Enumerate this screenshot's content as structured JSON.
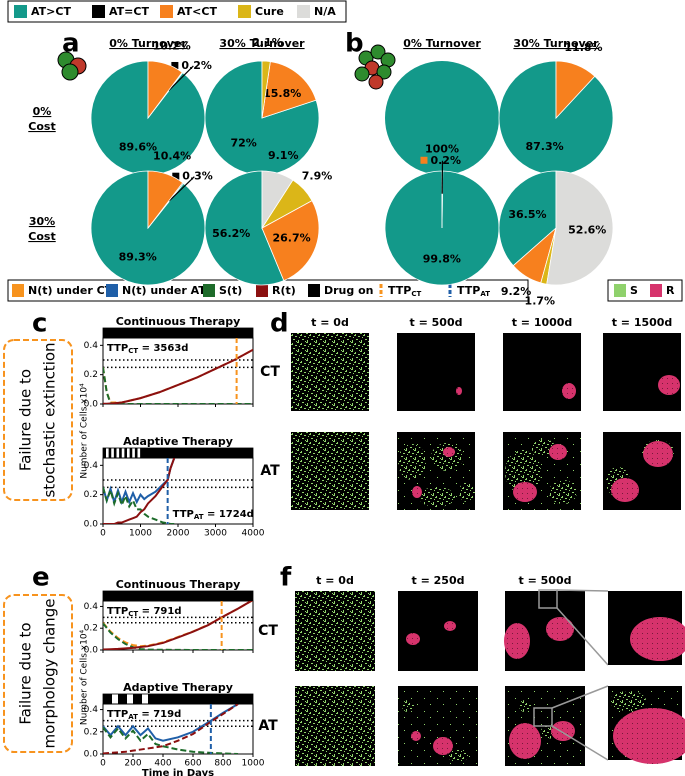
{
  "outcome_legend": [
    {
      "name": "AT>CT",
      "color": "#13998a"
    },
    {
      "name": "AT=CT",
      "color": "#000000"
    },
    {
      "name": "AT<CT",
      "color": "#f7801e"
    },
    {
      "name": "Cure",
      "color": "#dbb618"
    },
    {
      "name": "N/A",
      "color": "#dcdcda"
    }
  ],
  "panel_labels": [
    "a",
    "b",
    "c",
    "d",
    "e",
    "f"
  ],
  "turnover_headers": [
    "0% Turnover",
    "30% Turnover"
  ],
  "cost_labels": [
    [
      "0%",
      "Cost"
    ],
    [
      "30%",
      "Cost"
    ]
  ],
  "line_legend": [
    {
      "name": "N(t) under CT",
      "color": "#f7931e"
    },
    {
      "name": "N(t) under AT",
      "color": "#1f5fa8"
    },
    {
      "name": "S(t)",
      "color": "#1d6b2a"
    },
    {
      "name": "R(t)",
      "color": "#8b1010"
    },
    {
      "name": "Drug on",
      "color": "#000000"
    },
    {
      "name": "TTP",
      "sub": "CT",
      "color": "#f7931e"
    },
    {
      "name": "TTP",
      "sub": "AT",
      "color": "#1f5fa8"
    }
  ],
  "cell_legend": [
    {
      "name": "S",
      "color": "#8fd16c"
    },
    {
      "name": "R",
      "color": "#d6336c"
    }
  ],
  "side_labels": [
    [
      "Failure due to",
      "stochastic extinction"
    ],
    [
      "Failure due to",
      "morphology change"
    ]
  ],
  "simulations": {
    "d": {
      "times": [
        "t = 0d",
        "t = 500d",
        "t = 1000d",
        "t = 1500d"
      ],
      "rows": [
        "CT",
        "AT"
      ]
    },
    "f": {
      "times": [
        "t = 0d",
        "t = 250d",
        "t = 500d"
      ],
      "rows": [
        "CT",
        "AT"
      ]
    }
  },
  "chart_data": [
    {
      "type": "pie",
      "values": [
        89.6,
        0.2,
        10.2
      ],
      "value_labels": [
        "89.6%",
        "0.2%",
        "10.2%"
      ],
      "colors": [
        "#13998a",
        "#000000",
        "#f7801e"
      ]
    },
    {
      "type": "pie",
      "values": [
        72,
        15.8,
        2.1
      ],
      "value_labels": [
        "72%",
        "15.8%",
        "2.1%"
      ],
      "colors": [
        "#13998a",
        "#f7801e",
        "#dbb618"
      ]
    },
    {
      "type": "pie",
      "values": [
        89.3,
        0.3,
        10.4
      ],
      "value_labels": [
        "89.3%",
        "0.3%",
        "10.4%"
      ],
      "colors": [
        "#13998a",
        "#000000",
        "#f7801e"
      ]
    },
    {
      "type": "pie",
      "values": [
        56.2,
        26.7,
        7.9,
        9.1
      ],
      "value_labels": [
        "56.2%",
        "26.7%",
        "7.9%",
        "9.1%"
      ],
      "colors": [
        "#13998a",
        "#f7801e",
        "#dbb618",
        "#dcdcda"
      ]
    },
    {
      "type": "pie",
      "values": [
        100
      ],
      "value_labels": [
        "100%"
      ],
      "colors": [
        "#13998a"
      ]
    },
    {
      "type": "pie",
      "values": [
        87.3,
        11.8
      ],
      "value_labels": [
        "87.3%",
        "11.8%"
      ],
      "colors": [
        "#13998a",
        "#f7801e"
      ]
    },
    {
      "type": "pie",
      "values": [
        99.8,
        0.2
      ],
      "value_labels": [
        "99.8%",
        "0.2%"
      ],
      "colors": [
        "#13998a",
        "#f7801e"
      ]
    },
    {
      "type": "pie",
      "values": [
        36.5,
        9.2,
        1.7,
        52.6
      ],
      "value_labels": [
        "36.5%",
        "9.2%",
        "1.7%",
        "52.6%"
      ],
      "colors": [
        "#13998a",
        "#f7801e",
        "#dbb618",
        "#dcdcda"
      ]
    },
    {
      "type": "line",
      "title": "Continuous Therapy",
      "x": [
        0,
        100,
        200,
        500,
        1000,
        1500,
        2000,
        2500,
        3000,
        3500,
        4000
      ],
      "series": [
        {
          "color": "#f7931e",
          "dash": true,
          "values": [
            0.25,
            0.08,
            0.01,
            0.01,
            0.04,
            0.08,
            0.13,
            0.18,
            0.24,
            0.3,
            0.37
          ]
        },
        {
          "color": "#1d6b2a",
          "dash": true,
          "values": [
            0.25,
            0.08,
            0.005,
            0,
            0,
            0,
            0,
            0,
            0,
            0,
            0
          ]
        },
        {
          "color": "#8b1010",
          "dash": false,
          "values": [
            0.002,
            0.002,
            0.003,
            0.01,
            0.04,
            0.08,
            0.13,
            0.18,
            0.24,
            0.3,
            0.37
          ]
        }
      ],
      "xlim": [
        0,
        4000
      ],
      "xticks": [
        0,
        1000,
        2000,
        3000,
        4000
      ],
      "show_xtick_labels": false,
      "ylim": [
        0,
        0.45
      ],
      "yticks": [
        {
          "value": 0,
          "label": "0.0"
        },
        0.2,
        0.4
      ],
      "thresholds": [
        0.25,
        0.3
      ],
      "drug_on": [
        [
          0,
          4000
        ]
      ],
      "ttp": 3563,
      "ttp_label": [
        "TTP",
        "CT",
        " = 3563d"
      ],
      "ttp_color": "#f7931e"
    },
    {
      "type": "line",
      "title": "Adaptive Therapy",
      "x": [
        0,
        100,
        200,
        300,
        400,
        500,
        600,
        700,
        800,
        900,
        1000,
        1100,
        1200,
        1400,
        1600,
        1724,
        1800,
        1900
      ],
      "series": [
        {
          "color": "#1f5fa8",
          "dash": false,
          "values": [
            0.25,
            0.16,
            0.24,
            0.15,
            0.23,
            0.15,
            0.22,
            0.15,
            0.21,
            0.15,
            0.2,
            0.17,
            0.19,
            0.22,
            0.27,
            0.3,
            0.38,
            0.45
          ]
        },
        {
          "color": "#1d6b2a",
          "dash": true,
          "values": [
            0.25,
            0.16,
            0.23,
            0.14,
            0.21,
            0.13,
            0.19,
            0.12,
            0.16,
            0.1,
            0.1,
            0.07,
            0.05,
            0.03,
            0.01,
            0.005,
            0,
            0
          ]
        },
        {
          "color": "#8b1010",
          "dash": false,
          "values": [
            0,
            0,
            0,
            0,
            0.01,
            0.01,
            0.02,
            0.03,
            0.04,
            0.05,
            0.08,
            0.1,
            0.14,
            0.19,
            0.26,
            0.3,
            0.38,
            0.45
          ]
        }
      ],
      "xlim": [
        0,
        4000
      ],
      "xticks": [
        0,
        1000,
        2000,
        3000,
        4000
      ],
      "show_xtick_labels": true,
      "ylim": [
        0,
        0.45
      ],
      "yticks": [
        {
          "value": 0,
          "label": "0.0"
        },
        0.2,
        0.4
      ],
      "ylabel": "Number of Cells x10⁴",
      "thresholds": [
        0.25,
        0.3
      ],
      "drug_on": [
        [
          0,
          80
        ],
        [
          150,
          220
        ],
        [
          290,
          360
        ],
        [
          430,
          500
        ],
        [
          570,
          640
        ],
        [
          710,
          780
        ],
        [
          850,
          920
        ],
        [
          990,
          4000
        ]
      ],
      "ttp": 1724,
      "ttp_label": [
        "TTP",
        "AT",
        " = 1724d"
      ],
      "ttp_color": "#1f5fa8"
    },
    {
      "type": "line",
      "title": "Continuous Therapy",
      "x": [
        0,
        50,
        100,
        150,
        200,
        250,
        300,
        400,
        500,
        600,
        700,
        791,
        900,
        1000
      ],
      "series": [
        {
          "color": "#f7931e",
          "dash": true,
          "values": [
            0.25,
            0.17,
            0.11,
            0.07,
            0.045,
            0.035,
            0.04,
            0.07,
            0.12,
            0.17,
            0.23,
            0.3,
            0.38,
            0.46
          ]
        },
        {
          "color": "#1d6b2a",
          "dash": true,
          "values": [
            0.245,
            0.16,
            0.1,
            0.055,
            0.025,
            0.008,
            0.004,
            0.002,
            0.001,
            0,
            0,
            0,
            0,
            0
          ]
        },
        {
          "color": "#8b1010",
          "dash": false,
          "values": [
            0.005,
            0.007,
            0.01,
            0.015,
            0.02,
            0.028,
            0.035,
            0.065,
            0.115,
            0.168,
            0.228,
            0.3,
            0.38,
            0.46
          ]
        }
      ],
      "xlim": [
        0,
        1000
      ],
      "xticks": [
        0,
        200,
        400,
        600,
        800,
        1000
      ],
      "show_xtick_labels": false,
      "ylim": [
        0,
        0.45
      ],
      "yticks": [
        {
          "value": 0,
          "label": "0.0"
        },
        0.2,
        0.4
      ],
      "thresholds": [
        0.25,
        0.3
      ],
      "drug_on": [
        [
          0,
          1000
        ]
      ],
      "ttp": 791,
      "ttp_label": [
        "TTP",
        "CT",
        " = 791d"
      ],
      "ttp_color": "#f7931e"
    },
    {
      "type": "line",
      "title": "Adaptive Therapy",
      "x": [
        0,
        50,
        100,
        150,
        200,
        250,
        300,
        350,
        400,
        500,
        600,
        719,
        800,
        900
      ],
      "series": [
        {
          "color": "#1f5fa8",
          "dash": false,
          "values": [
            0.25,
            0.17,
            0.25,
            0.17,
            0.25,
            0.17,
            0.23,
            0.14,
            0.12,
            0.15,
            0.2,
            0.3,
            0.37,
            0.45
          ]
        },
        {
          "color": "#1d6b2a",
          "dash": true,
          "values": [
            0.24,
            0.15,
            0.23,
            0.14,
            0.21,
            0.12,
            0.18,
            0.09,
            0.07,
            0.04,
            0.02,
            0.01,
            0.005,
            0
          ]
        },
        {
          "color": "#8b1010",
          "dash": true,
          "values": [
            0.005,
            0.01,
            0.015,
            0.02,
            0.03,
            0.04,
            0.05,
            0.06,
            0.07,
            0.12,
            0.18,
            0.29,
            0.36,
            0.45
          ]
        }
      ],
      "xlim": [
        0,
        1000
      ],
      "xticks": [
        0,
        200,
        400,
        600,
        800,
        1000
      ],
      "show_xtick_labels": true,
      "ylim": [
        0,
        0.45
      ],
      "yticks": [
        {
          "value": 0,
          "label": "0.0"
        },
        0.2,
        0.4
      ],
      "ylabel": "Number of Cells x10⁴",
      "xlabel": "Time in Days",
      "thresholds": [
        0.25,
        0.3
      ],
      "drug_on": [
        [
          0,
          60
        ],
        [
          100,
          160
        ],
        [
          200,
          260
        ],
        [
          300,
          1000
        ]
      ],
      "ttp": 719,
      "ttp_label": [
        "TTP",
        "AT",
        " = 719d"
      ],
      "ttp_color": "#1f5fa8"
    }
  ]
}
